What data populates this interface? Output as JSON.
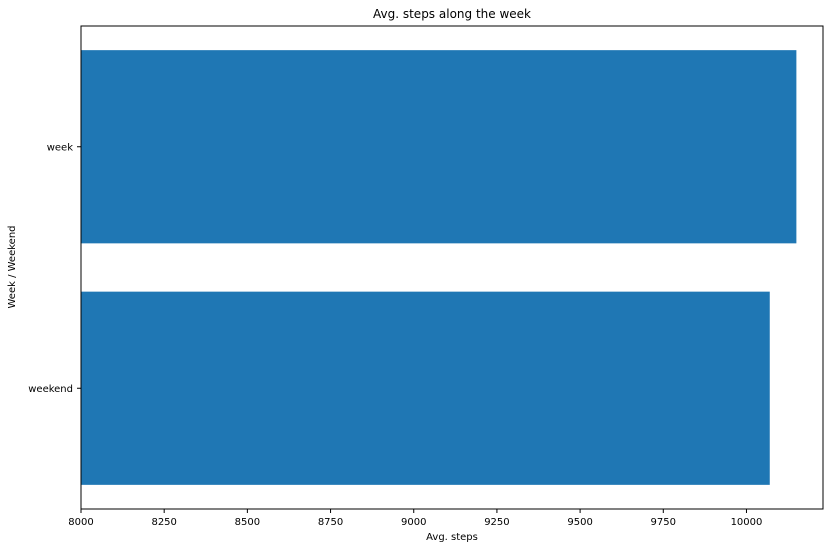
{
  "chart_data": {
    "type": "bar",
    "orientation": "horizontal",
    "title": "Avg. steps along the week",
    "xlabel": "Avg. steps",
    "ylabel": "Week / Weekend",
    "categories": [
      "week",
      "weekend"
    ],
    "values": [
      10150,
      10070
    ],
    "xlim": [
      8000,
      10230
    ],
    "xticks": [
      "8000",
      "8250",
      "8500",
      "8750",
      "9000",
      "9250",
      "9500",
      "9750",
      "10000"
    ],
    "bar_color": "#1f77b4",
    "grid": false,
    "legend": "none"
  }
}
